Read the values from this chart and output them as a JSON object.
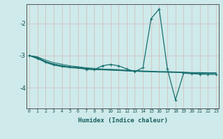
{
  "title": "",
  "xlabel": "Humidex (Indice chaleur)",
  "ylabel": "",
  "background_color": "#ceeaea",
  "grid_color": "#d4b8b8",
  "line_color": "#1a7070",
  "x_ticks": [
    0,
    1,
    2,
    3,
    4,
    5,
    6,
    7,
    8,
    9,
    10,
    11,
    12,
    13,
    14,
    15,
    16,
    17,
    18,
    19,
    20,
    21,
    22,
    23
  ],
  "y_ticks": [
    -4,
    -3,
    -2
  ],
  "xlim": [
    -0.3,
    23.3
  ],
  "ylim": [
    -4.65,
    -1.4
  ],
  "lines": [
    {
      "x": [
        0,
        1,
        2,
        3,
        4,
        5,
        6,
        7,
        8,
        9,
        10,
        11,
        12,
        13,
        14,
        15,
        16,
        17,
        18,
        19,
        20,
        21,
        22,
        23
      ],
      "y": [
        -3.0,
        -3.08,
        -3.22,
        -3.3,
        -3.35,
        -3.38,
        -3.4,
        -3.42,
        -3.44,
        -3.45,
        -3.46,
        -3.47,
        -3.48,
        -3.49,
        -3.5,
        -3.51,
        -3.52,
        -3.52,
        -3.53,
        -3.54,
        -3.55,
        -3.55,
        -3.56,
        -3.56
      ],
      "marker": null,
      "lw": 0.7
    },
    {
      "x": [
        0,
        1,
        2,
        3,
        4,
        5,
        6,
        7,
        8,
        9,
        10,
        11,
        12,
        13,
        14,
        15,
        16,
        17,
        18,
        19,
        20,
        21,
        22,
        23
      ],
      "y": [
        -3.0,
        -3.05,
        -3.18,
        -3.26,
        -3.31,
        -3.35,
        -3.37,
        -3.4,
        -3.42,
        -3.43,
        -3.44,
        -3.45,
        -3.47,
        -3.48,
        -3.49,
        -3.5,
        -3.51,
        -3.51,
        -3.52,
        -3.53,
        -3.54,
        -3.54,
        -3.55,
        -3.55
      ],
      "marker": null,
      "lw": 0.7
    },
    {
      "x": [
        0,
        1,
        2,
        3,
        4,
        5,
        6,
        7,
        8,
        9,
        10,
        11,
        12,
        13,
        14,
        15,
        16,
        17,
        18,
        19,
        20,
        21,
        22,
        23
      ],
      "y": [
        -3.0,
        -3.04,
        -3.14,
        -3.22,
        -3.27,
        -3.32,
        -3.35,
        -3.38,
        -3.4,
        -3.42,
        -3.43,
        -3.44,
        -3.46,
        -3.47,
        -3.48,
        -3.49,
        -3.5,
        -3.5,
        -3.51,
        -3.52,
        -3.53,
        -3.53,
        -3.54,
        -3.54
      ],
      "marker": null,
      "lw": 0.7
    },
    {
      "x": [
        0,
        1,
        2,
        3,
        4,
        5,
        6,
        7,
        8,
        9,
        10,
        11,
        12,
        13,
        14,
        15,
        16,
        17,
        18,
        19,
        20,
        21,
        22,
        23
      ],
      "y": [
        -3.0,
        -3.06,
        -3.2,
        -3.28,
        -3.33,
        -3.36,
        -3.38,
        -3.41,
        -3.43,
        -3.44,
        -3.45,
        -3.46,
        -3.48,
        -3.49,
        -3.5,
        -3.5,
        -3.51,
        -3.52,
        -3.52,
        -3.53,
        -3.54,
        -3.54,
        -3.55,
        -3.55
      ],
      "marker": null,
      "lw": 0.7
    },
    {
      "x": [
        0,
        1,
        2,
        3,
        4,
        5,
        6,
        7,
        8,
        9,
        10,
        11,
        12,
        13,
        14,
        15,
        16,
        17,
        18,
        19,
        20,
        21,
        22,
        23
      ],
      "y": [
        -3.0,
        -3.1,
        -3.2,
        -3.28,
        -3.33,
        -3.36,
        -3.38,
        -3.43,
        -3.44,
        -3.32,
        -3.28,
        -3.32,
        -3.42,
        -3.5,
        -3.38,
        -1.85,
        -1.55,
        -3.42,
        -4.38,
        -3.55,
        -3.57,
        -3.58,
        -3.59,
        -3.59
      ],
      "marker": "+",
      "lw": 0.9
    }
  ]
}
